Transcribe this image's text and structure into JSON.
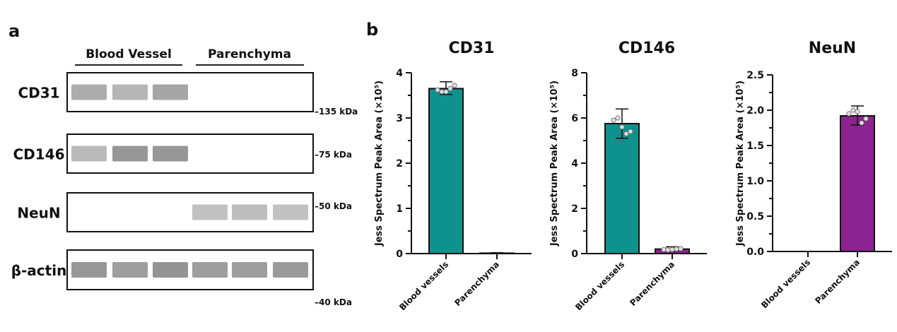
{
  "panel_a": {
    "panel_letter": "a",
    "group_labels": [
      "Blood Vessel",
      "Parenchyma"
    ],
    "rows": [
      {
        "label": "CD31",
        "marker": "–135 kDa",
        "bands": [
          0.45,
          0.38,
          0.5,
          0,
          0,
          0
        ]
      },
      {
        "label": "CD146",
        "marker": "–75 kDa",
        "bands": [
          0.35,
          0.6,
          0.6,
          0,
          0,
          0
        ]
      },
      {
        "label": "NeuN",
        "marker": "–50 kDa",
        "bands": [
          0,
          0,
          0,
          0.3,
          0.32,
          0.3
        ]
      },
      {
        "label": "β-actin",
        "marker": "–40 kDa",
        "bands": [
          0.6,
          0.55,
          0.62,
          0.55,
          0.55,
          0.58
        ]
      }
    ]
  },
  "panel_b": {
    "panel_letter": "b"
  },
  "colors": {
    "blood_vessels": "#0f918d",
    "parenchyma": "#8c2390"
  },
  "chart_data": [
    {
      "type": "bar",
      "title": "CD31",
      "ylabel": "Jess Spectrum Peak Area (×10⁵)",
      "categories": [
        "Blood vessels",
        "Parenchyma"
      ],
      "values": [
        3.65,
        0.01
      ],
      "error": [
        [
          3.52,
          3.8
        ],
        [
          0.0,
          0.02
        ]
      ],
      "points": [
        [
          3.62,
          3.58,
          3.58,
          3.65,
          3.72
        ],
        []
      ],
      "ylim": [
        0,
        4
      ],
      "yticks": [
        "0",
        "1",
        "2",
        "3",
        "4"
      ],
      "ytick_values": [
        0,
        1,
        2,
        3,
        4
      ]
    },
    {
      "type": "bar",
      "title": "CD146",
      "ylabel": "Jess Spectrum Peak Area (×10⁵)",
      "categories": [
        "Blood vessels",
        "Parenchyma"
      ],
      "values": [
        5.75,
        0.2
      ],
      "error": [
        [
          5.1,
          6.4
        ],
        [
          0.1,
          0.3
        ]
      ],
      "points": [
        [
          5.9,
          6.0,
          5.6,
          5.3,
          5.4
        ],
        [
          0.18,
          0.16,
          0.18,
          0.2,
          0.22
        ]
      ],
      "ylim": [
        0,
        8
      ],
      "yticks": [
        "0",
        "2",
        "4",
        "6",
        "8"
      ],
      "ytick_values": [
        0,
        2,
        4,
        6,
        8
      ]
    },
    {
      "type": "bar",
      "title": "NeuN",
      "ylabel": "Jess Spectrum Peak Area (×10⁵)",
      "categories": [
        "Blood vessels",
        "Parenchyma"
      ],
      "values": [
        0,
        1.92
      ],
      "error": [
        [
          0,
          0
        ],
        [
          1.79,
          2.06
        ]
      ],
      "points": [
        [],
        [
          1.95,
          2.0,
          1.98,
          1.82,
          1.88
        ]
      ],
      "ylim": [
        0,
        2.5
      ],
      "yticks": [
        "0.0",
        "0.5",
        "1.0",
        "1.5",
        "2.0",
        "2.5"
      ],
      "ytick_values": [
        0,
        0.5,
        1,
        1.5,
        2,
        2.5
      ]
    }
  ]
}
